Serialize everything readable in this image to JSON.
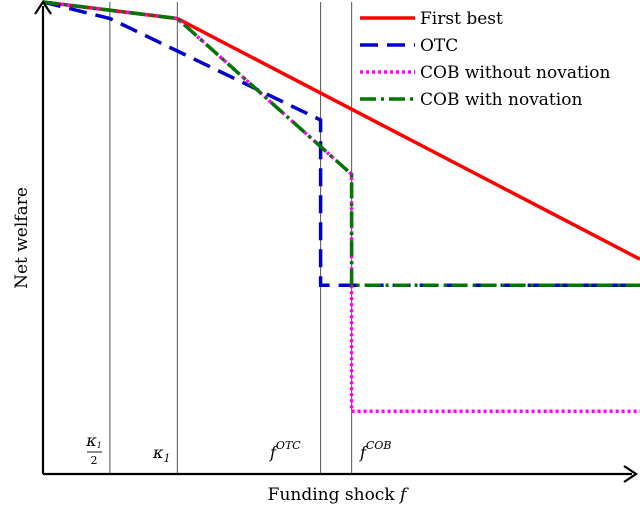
{
  "chart_data": {
    "type": "line",
    "title": "",
    "xlabel": "Funding shock f",
    "ylabel": "Net welfare",
    "xlim": [
      0,
      1
    ],
    "ylim": [
      0,
      1
    ],
    "grid": false,
    "legend_position": "top-right",
    "colors": {
      "first_best": "#ff0000",
      "otc": "#0000cc",
      "cob_without_novation": "#ff00ff",
      "cob_with_novation": "#007700",
      "axis": "#000000",
      "guide": "#555555"
    },
    "vlines": [
      {
        "x": 0.112,
        "label": "κ1/2"
      },
      {
        "x": 0.225,
        "label": "κ1"
      },
      {
        "x": 0.465,
        "label": "f^OTC"
      },
      {
        "x": 0.517,
        "label": "f^COB"
      }
    ],
    "series": [
      {
        "name": "First best",
        "key": "first_best",
        "dash": "",
        "width": 3.5,
        "points": [
          [
            0,
            1.0
          ],
          [
            0.225,
            0.965
          ],
          [
            1.0,
            0.455
          ]
        ]
      },
      {
        "name": "OTC",
        "key": "otc",
        "dash": "18,9",
        "width": 3.5,
        "points": [
          [
            0,
            1.0
          ],
          [
            0.112,
            0.965
          ],
          [
            0.465,
            0.75
          ],
          [
            0.465,
            0.4
          ],
          [
            1.0,
            0.4
          ]
        ]
      },
      {
        "name": "COB without novation",
        "key": "cob_without_novation",
        "dash": "3,3",
        "width": 3.5,
        "points": [
          [
            0,
            1.0
          ],
          [
            0.225,
            0.965
          ],
          [
            0.517,
            0.635
          ],
          [
            0.517,
            0.133
          ],
          [
            1.0,
            0.133
          ]
        ]
      },
      {
        "name": "COB with novation",
        "key": "cob_with_novation",
        "dash": "16,5,3,5",
        "width": 3.5,
        "points": [
          [
            0,
            1.0
          ],
          [
            0.225,
            0.965
          ],
          [
            0.517,
            0.635
          ],
          [
            0.517,
            0.4
          ],
          [
            1.0,
            0.4
          ]
        ]
      }
    ]
  }
}
